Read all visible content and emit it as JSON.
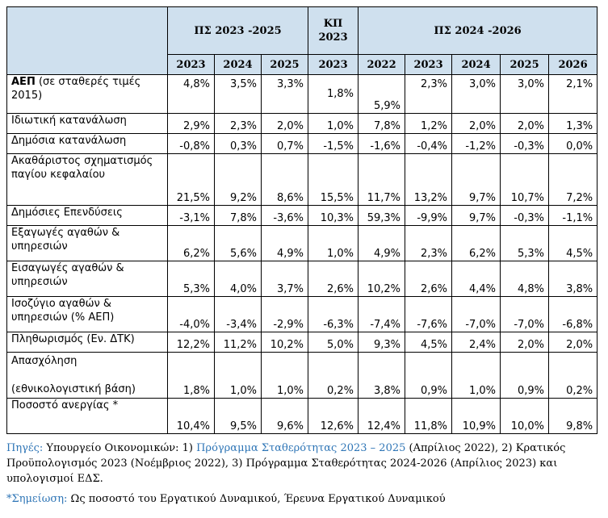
{
  "table": {
    "groups": [
      "ΠΣ 2023 -2025",
      "ΚΠ\n2023",
      "ΠΣ 2024 -2026"
    ],
    "years": [
      "2023",
      "2024",
      "2025",
      "2023",
      "2022",
      "2023",
      "2024",
      "2025",
      "2026"
    ],
    "rows": [
      {
        "label_main": "ΑΕΠ",
        "label_rest": " (σε σταθερές τιμές 2015)",
        "values": [
          "4,8%",
          "3,5%",
          "3,3%",
          "1,8%",
          "5,9%",
          "2,3%",
          "3,0%",
          "3,0%",
          "2,1%"
        ]
      },
      {
        "label": "Ιδιωτική κατανάλωση",
        "values": [
          "2,9%",
          "2,3%",
          "2,0%",
          "1,0%",
          "7,8%",
          "1,2%",
          "2,0%",
          "2,0%",
          "1,3%"
        ]
      },
      {
        "label": "Δημόσια κατανάλωση",
        "values": [
          "-0,8%",
          "0,3%",
          "0,7%",
          "-1,5%",
          "-1,6%",
          "-0,4%",
          "-1,2%",
          "-0,3%",
          "0,0%"
        ]
      },
      {
        "label": "Ακαθάριστος σχηματισμός παγίου κεφαλαίου",
        "values": [
          "21,5%",
          "9,2%",
          "8,6%",
          "15,5%",
          "11,7%",
          "13,2%",
          "9,7%",
          "10,7%",
          "7,2%"
        ]
      },
      {
        "label": "Δημόσιες Επενδύσεις",
        "values": [
          "-3,1%",
          "7,8%",
          "-3,6%",
          "10,3%",
          "59,3%",
          "-9,9%",
          "9,7%",
          "-0,3%",
          "-1,1%"
        ]
      },
      {
        "label": "Εξαγωγές αγαθών & υπηρεσιών",
        "values": [
          "6,2%",
          "5,6%",
          "4,9%",
          "1,0%",
          "4,9%",
          "2,3%",
          "6,2%",
          "5,3%",
          "4,5%"
        ]
      },
      {
        "label": "Εισαγωγές αγαθών & υπηρεσιών",
        "values": [
          "5,3%",
          "4,0%",
          "3,7%",
          "2,6%",
          "10,2%",
          "2,6%",
          "4,4%",
          "4,8%",
          "3,8%"
        ]
      },
      {
        "label": "Ισοζύγιο αγαθών & υπηρεσιών (% ΑΕΠ)",
        "values": [
          "-4,0%",
          "-3,4%",
          "-2,9%",
          "-6,3%",
          "-7,4%",
          "-7,6%",
          "-7,0%",
          "-7,0%",
          "-6,8%"
        ]
      },
      {
        "label": "Πληθωρισμός (Εν. ΔΤΚ)",
        "values": [
          "12,2%",
          "11,2%",
          "10,2%",
          "5,0%",
          "9,3%",
          "4,5%",
          "2,4%",
          "2,0%",
          "2,0%"
        ]
      },
      {
        "label_a": "Απασχόληση",
        "label_b": "(εθνικολογιστική βάση)",
        "values": [
          "1,8%",
          "1,0%",
          "1,0%",
          "0,2%",
          "3,8%",
          "0,9%",
          "1,0%",
          "0,9%",
          "0,2%"
        ]
      },
      {
        "label": "Ποσοστό ανεργίας *",
        "values": [
          "10,4%",
          "9,5%",
          "9,6%",
          "12,6%",
          "12,4%",
          "11,8%",
          "10,9%",
          "10,0%",
          "9,8%"
        ]
      }
    ]
  },
  "notes": {
    "sources_label": "Πηγές:",
    "sources_part1": " Υπουργείο Οικονομικών: 1) ",
    "sources_link1": "Πρόγραμμα Σταθερότητας 2023 – 2025",
    "sources_part2": " (Απρίλιος 2022), 2) Κρατικός Προϋπολογισμός 2023 (Νοέμβριος 2022), 3) Πρόγραμμα Σταθερότητας 2024-2026 (Απρίλιος 2023) και υπολογισμοί ΕΔΣ.",
    "note_label": "*Σημείωση:",
    "note_text": " Ως ποσοστό του Εργατικού Δυναμικού, Έρευνα Εργατικού Δυναμικού"
  },
  "colors": {
    "header_bg": "#cfe0ee",
    "link": "#2e75b6"
  }
}
